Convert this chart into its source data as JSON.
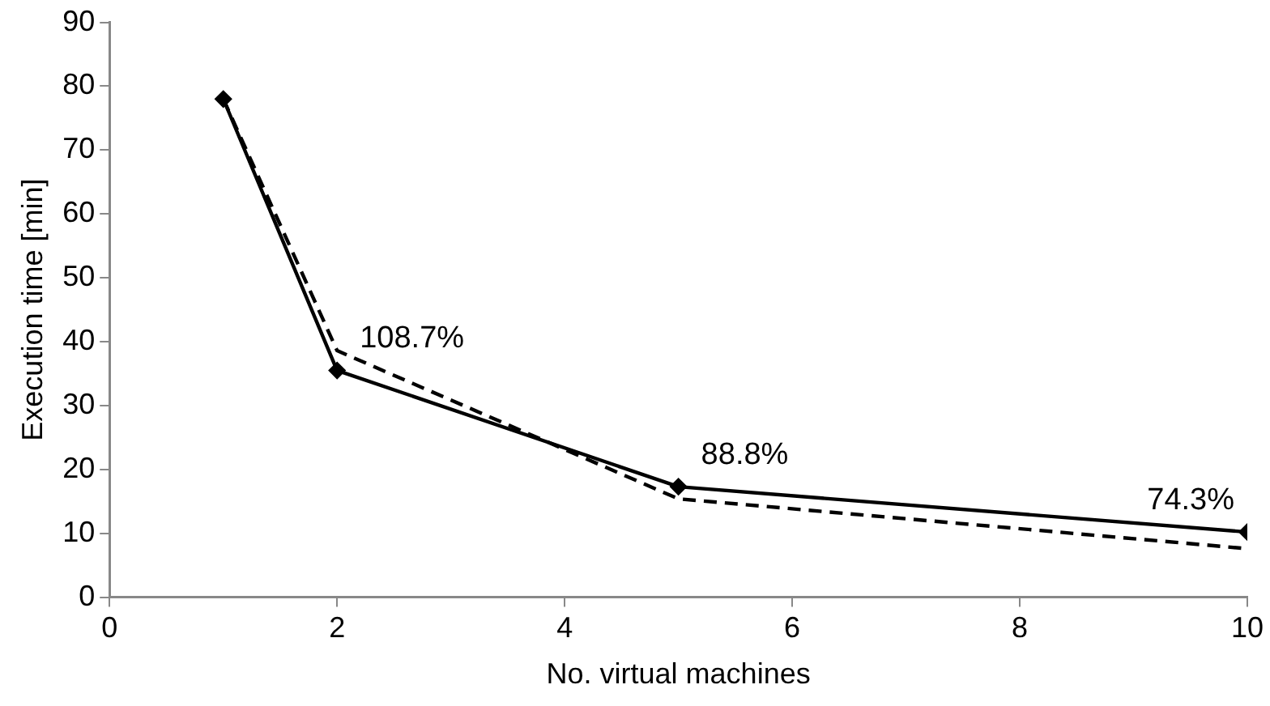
{
  "chart_data": {
    "type": "line",
    "xlabel": "No. virtual machines",
    "ylabel": "Execution time [min]",
    "xlim": [
      0,
      10
    ],
    "xticks": [
      0,
      2,
      4,
      6,
      8,
      10
    ],
    "ylim": [
      0,
      90
    ],
    "yticks": [
      0,
      10,
      20,
      30,
      40,
      50,
      60,
      70,
      80,
      90
    ],
    "grid": false,
    "legend": false,
    "series": [
      {
        "x": [
          1,
          2,
          5,
          10
        ],
        "values": [
          78,
          35.5,
          17.3,
          10.2
        ],
        "color": "#000000",
        "marker": "diamond",
        "line_style": "solid"
      },
      {
        "x": [
          1,
          2,
          5,
          10
        ],
        "values": [
          78,
          38.6,
          15.4,
          7.6
        ],
        "color": "#000000",
        "marker": "none",
        "line_style": "dashed"
      }
    ],
    "annotations": [
      {
        "text": "108.7%",
        "x": 2,
        "y": 35.5
      },
      {
        "text": "88.8%",
        "x": 5,
        "y": 17.3
      },
      {
        "text": "74.3%",
        "x": 10,
        "y": 10.2
      }
    ]
  }
}
